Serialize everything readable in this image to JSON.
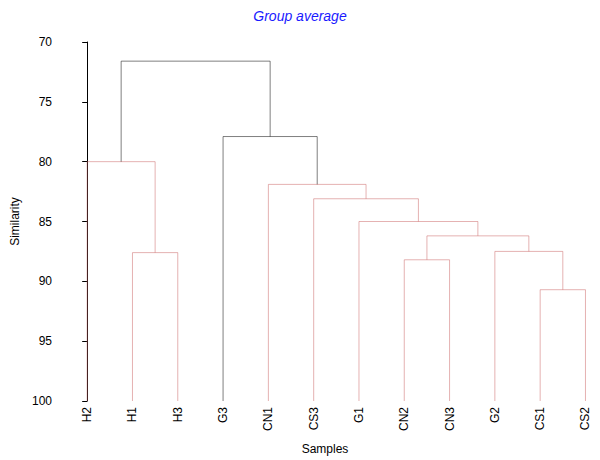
{
  "chart_data": {
    "type": "dendrogram",
    "title": "Group average",
    "x_label": "Samples",
    "y_label": "Similarity",
    "leaves": [
      "H2",
      "H1",
      "H3",
      "G3",
      "CN1",
      "CS3",
      "G1",
      "CN2",
      "CN3",
      "G2",
      "CS1",
      "CS2"
    ],
    "merges": [
      {
        "members": [
          "CS1",
          "CS2"
        ],
        "similarity": 90.7
      },
      {
        "members": [
          "CN2",
          "CN3"
        ],
        "similarity": 88.2
      },
      {
        "members": [
          "H1",
          "H3"
        ],
        "similarity": 87.6
      },
      {
        "members": [
          "G2",
          "CS1",
          "CS2"
        ],
        "similarity": 87.5
      },
      {
        "members": [
          "CN2",
          "CN3",
          "G2",
          "CS1",
          "CS2"
        ],
        "similarity": 86.2
      },
      {
        "members": [
          "G1",
          "CN2",
          "CN3",
          "G2",
          "CS1",
          "CS2"
        ],
        "similarity": 85.0
      },
      {
        "members": [
          "CS3",
          "G1",
          "CN2",
          "CN3",
          "G2",
          "CS1",
          "CS2"
        ],
        "similarity": 83.1
      },
      {
        "members": [
          "CN1",
          "CS3",
          "G1",
          "CN2",
          "CN3",
          "G2",
          "CS1",
          "CS2"
        ],
        "similarity": 81.9
      },
      {
        "members": [
          "H2",
          "H1",
          "H3"
        ],
        "similarity": 80.0
      },
      {
        "members": [
          "G3",
          "CN1",
          "CS3",
          "G1",
          "CN2",
          "CN3",
          "G2",
          "CS1",
          "CS2"
        ],
        "similarity": 77.9
      },
      {
        "members": [
          "H2",
          "H1",
          "H3",
          "G3",
          "CN1",
          "CS3",
          "G1",
          "CN2",
          "CN3",
          "G2",
          "CS1",
          "CS2"
        ],
        "similarity": 71.6
      }
    ],
    "colors": [
      "#cc6666",
      "#cc6666",
      "#cc6666",
      "#cc6666",
      "#cc6666",
      "#cc6666",
      "#cc6666",
      "#cc6666",
      "#cc6666",
      "#000000",
      "#000000"
    ],
    "ylim": [
      70,
      100
    ],
    "yticks": [
      70,
      75,
      80,
      85,
      90,
      95,
      100
    ]
  }
}
